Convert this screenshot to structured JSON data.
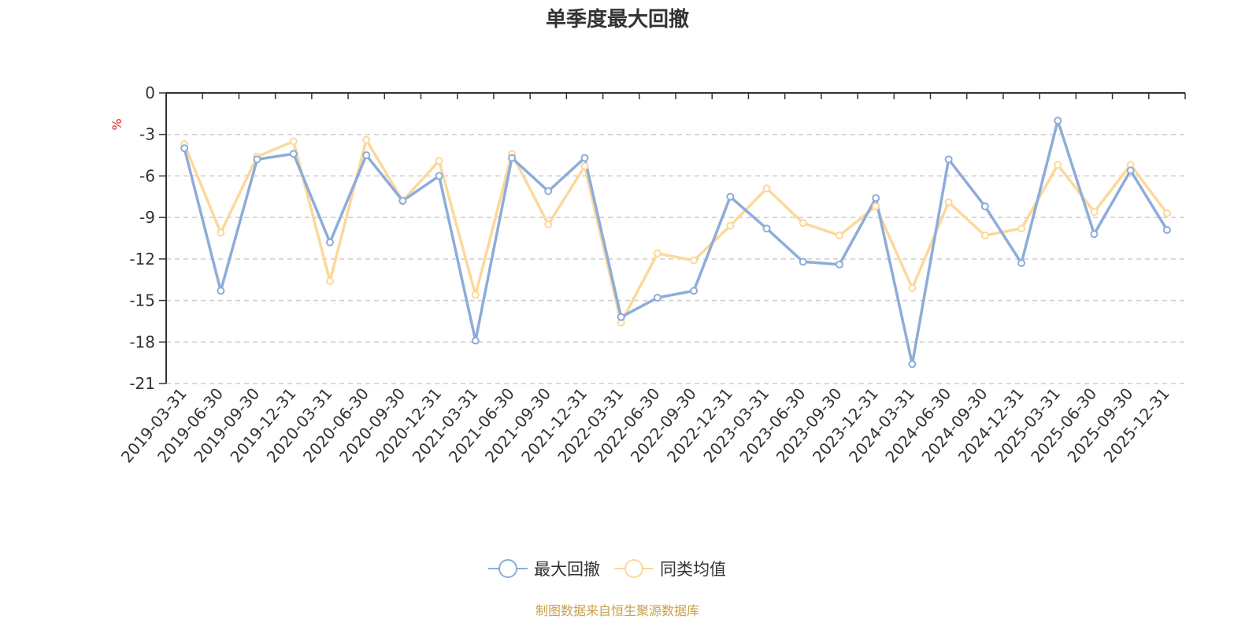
{
  "colors": {
    "series1": "#8eacd9",
    "series2": "#fcd89a",
    "axis": "#333333",
    "grid": "#cccccc",
    "unit": "#e02020",
    "note": "#c8a14a"
  },
  "chart_data": {
    "type": "line",
    "title": "单季度最大回撤",
    "ylabel": "%",
    "ylim": [
      -21,
      0
    ],
    "yticks": [
      0,
      -3,
      -6,
      -9,
      -12,
      -15,
      -18,
      -21
    ],
    "grid": true,
    "legend_position": "bottom-center",
    "categories": [
      "2019-03-31",
      "2019-06-30",
      "2019-09-30",
      "2019-12-31",
      "2020-03-31",
      "2020-06-30",
      "2020-09-30",
      "2020-12-31",
      "2021-03-31",
      "2021-06-30",
      "2021-09-30",
      "2021-12-31",
      "2022-03-31",
      "2022-06-30",
      "2022-09-30",
      "2022-12-31",
      "2023-03-31",
      "2023-06-30",
      "2023-09-30",
      "2023-12-31",
      "2024-03-31",
      "2024-06-30",
      "2024-09-30",
      "2024-12-31",
      "2025-03-31",
      "2025-06-30",
      "2025-09-30",
      "2025-12-31"
    ],
    "series": [
      {
        "name": "最大回撤",
        "values": [
          -4.0,
          -14.3,
          -4.8,
          -4.4,
          -10.8,
          -4.5,
          -7.8,
          -6.0,
          -17.9,
          -4.7,
          -7.1,
          -4.7,
          -16.2,
          -14.8,
          -14.3,
          -7.5,
          -9.8,
          -12.2,
          -12.4,
          -7.6,
          -19.6,
          -4.8,
          -8.2,
          -12.3,
          -2.0,
          -10.2,
          -5.6,
          -9.9
        ]
      },
      {
        "name": "同类均值",
        "values": [
          -3.7,
          -10.1,
          -4.6,
          -3.5,
          -13.6,
          -3.4,
          -7.8,
          -4.9,
          -14.6,
          -4.4,
          -9.5,
          -5.3,
          -16.6,
          -11.6,
          -12.1,
          -9.6,
          -6.9,
          -9.4,
          -10.3,
          -8.2,
          -14.1,
          -7.9,
          -10.3,
          -9.8,
          -5.2,
          -8.6,
          -5.2,
          -8.7
        ]
      }
    ]
  },
  "source_note": "制图数据来自恒生聚源数据库"
}
